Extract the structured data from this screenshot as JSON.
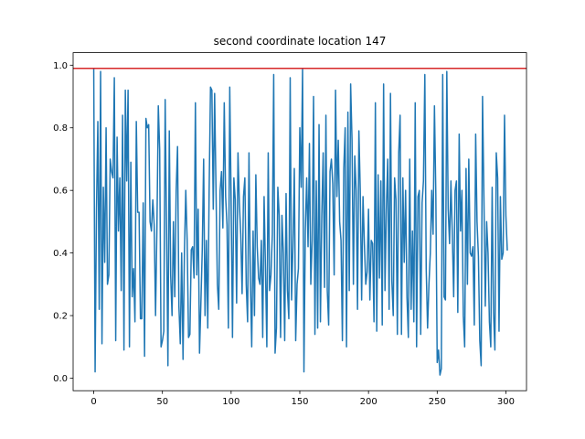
{
  "chart_data": {
    "type": "line",
    "title": "second coordinate location 147",
    "xlabel": "",
    "ylabel": "",
    "xlim": [
      -15,
      315
    ],
    "ylim": [
      -0.04,
      1.04
    ],
    "x_ticks": [
      0,
      50,
      100,
      150,
      200,
      250,
      300
    ],
    "y_ticks": [
      0.0,
      0.2,
      0.4,
      0.6,
      0.8,
      1.0
    ],
    "x_tick_labels": [
      "0",
      "50",
      "100",
      "150",
      "200",
      "250",
      "300"
    ],
    "y_tick_labels": [
      "0.0",
      "0.2",
      "0.4",
      "0.6",
      "0.8",
      "1.0"
    ],
    "grid": false,
    "legend": "none",
    "hline": {
      "y": 0.99,
      "color": "#d62728"
    },
    "series": [
      {
        "color": "#1f77b4",
        "x_start": 0,
        "x_step": 1,
        "values": [
          0.99,
          0.02,
          0.54,
          0.82,
          0.22,
          0.98,
          0.11,
          0.61,
          0.37,
          0.8,
          0.3,
          0.33,
          0.7,
          0.66,
          0.64,
          0.96,
          0.12,
          0.77,
          0.47,
          0.64,
          0.28,
          0.84,
          0.09,
          0.92,
          0.63,
          0.92,
          0.1,
          0.69,
          0.26,
          0.35,
          0.18,
          0.82,
          0.53,
          0.53,
          0.19,
          0.19,
          0.56,
          0.07,
          0.83,
          0.8,
          0.81,
          0.5,
          0.47,
          0.57,
          0.49,
          0.2,
          0.48,
          0.87,
          0.73,
          0.1,
          0.12,
          0.15,
          0.89,
          0.48,
          0.04,
          0.79,
          0.33,
          0.2,
          0.5,
          0.26,
          0.6,
          0.74,
          0.23,
          0.11,
          0.4,
          0.06,
          0.4,
          0.6,
          0.44,
          0.13,
          0.14,
          0.41,
          0.42,
          0.32,
          0.88,
          0.33,
          0.54,
          0.08,
          0.24,
          0.41,
          0.7,
          0.2,
          0.44,
          0.16,
          0.6,
          0.93,
          0.92,
          0.54,
          0.91,
          0.6,
          0.3,
          0.22,
          0.6,
          0.66,
          0.48,
          0.88,
          0.58,
          0.49,
          0.16,
          0.93,
          0.57,
          0.13,
          0.64,
          0.57,
          0.24,
          0.72,
          0.56,
          0.46,
          0.27,
          0.58,
          0.64,
          0.3,
          0.18,
          0.72,
          0.32,
          0.1,
          0.47,
          0.2,
          0.65,
          0.42,
          0.32,
          0.3,
          0.44,
          0.13,
          0.58,
          0.35,
          0.1,
          0.72,
          0.28,
          0.33,
          0.46,
          0.97,
          0.08,
          0.16,
          0.61,
          0.52,
          0.13,
          0.52,
          0.4,
          0.12,
          0.59,
          0.28,
          0.19,
          0.96,
          0.25,
          0.42,
          0.67,
          0.12,
          0.3,
          0.35,
          0.8,
          0.61,
          0.99,
          0.02,
          0.47,
          0.64,
          0.42,
          0.75,
          0.3,
          0.44,
          0.9,
          0.14,
          0.63,
          0.16,
          0.81,
          0.18,
          0.52,
          0.72,
          0.29,
          0.84,
          0.28,
          0.17,
          0.66,
          0.7,
          0.62,
          0.33,
          0.92,
          0.58,
          0.76,
          0.5,
          0.44,
          0.12,
          0.67,
          0.8,
          0.1,
          0.85,
          0.28,
          0.94,
          0.76,
          0.3,
          0.71,
          0.6,
          0.22,
          0.79,
          0.6,
          0.25,
          0.58,
          0.43,
          0.3,
          0.34,
          0.54,
          0.25,
          0.44,
          0.43,
          0.18,
          0.88,
          0.15,
          0.65,
          0.32,
          0.63,
          0.17,
          0.94,
          0.28,
          0.54,
          0.7,
          0.22,
          0.91,
          0.31,
          0.2,
          0.64,
          0.57,
          0.14,
          0.72,
          0.84,
          0.14,
          0.64,
          0.37,
          0.6,
          0.26,
          0.13,
          0.7,
          0.22,
          0.47,
          0.18,
          0.88,
          0.1,
          0.58,
          0.6,
          0.14,
          0.56,
          0.63,
          0.97,
          0.35,
          0.16,
          0.3,
          0.4,
          0.6,
          0.46,
          0.87,
          0.59,
          0.05,
          0.09,
          0.01,
          0.03,
          0.97,
          0.26,
          0.25,
          0.98,
          0.54,
          0.43,
          0.63,
          0.46,
          0.26,
          0.6,
          0.63,
          0.21,
          0.78,
          0.47,
          0.6,
          0.2,
          0.1,
          0.67,
          0.3,
          0.7,
          0.4,
          0.39,
          0.42,
          0.17,
          0.78,
          0.5,
          0.39,
          0.12,
          0.04,
          0.9,
          0.58,
          0.23,
          0.5,
          0.4,
          0.18,
          0.1,
          0.61,
          0.21,
          0.09,
          0.72,
          0.64,
          0.15,
          0.58,
          0.38,
          0.4,
          0.84,
          0.52,
          0.41
        ]
      }
    ]
  }
}
